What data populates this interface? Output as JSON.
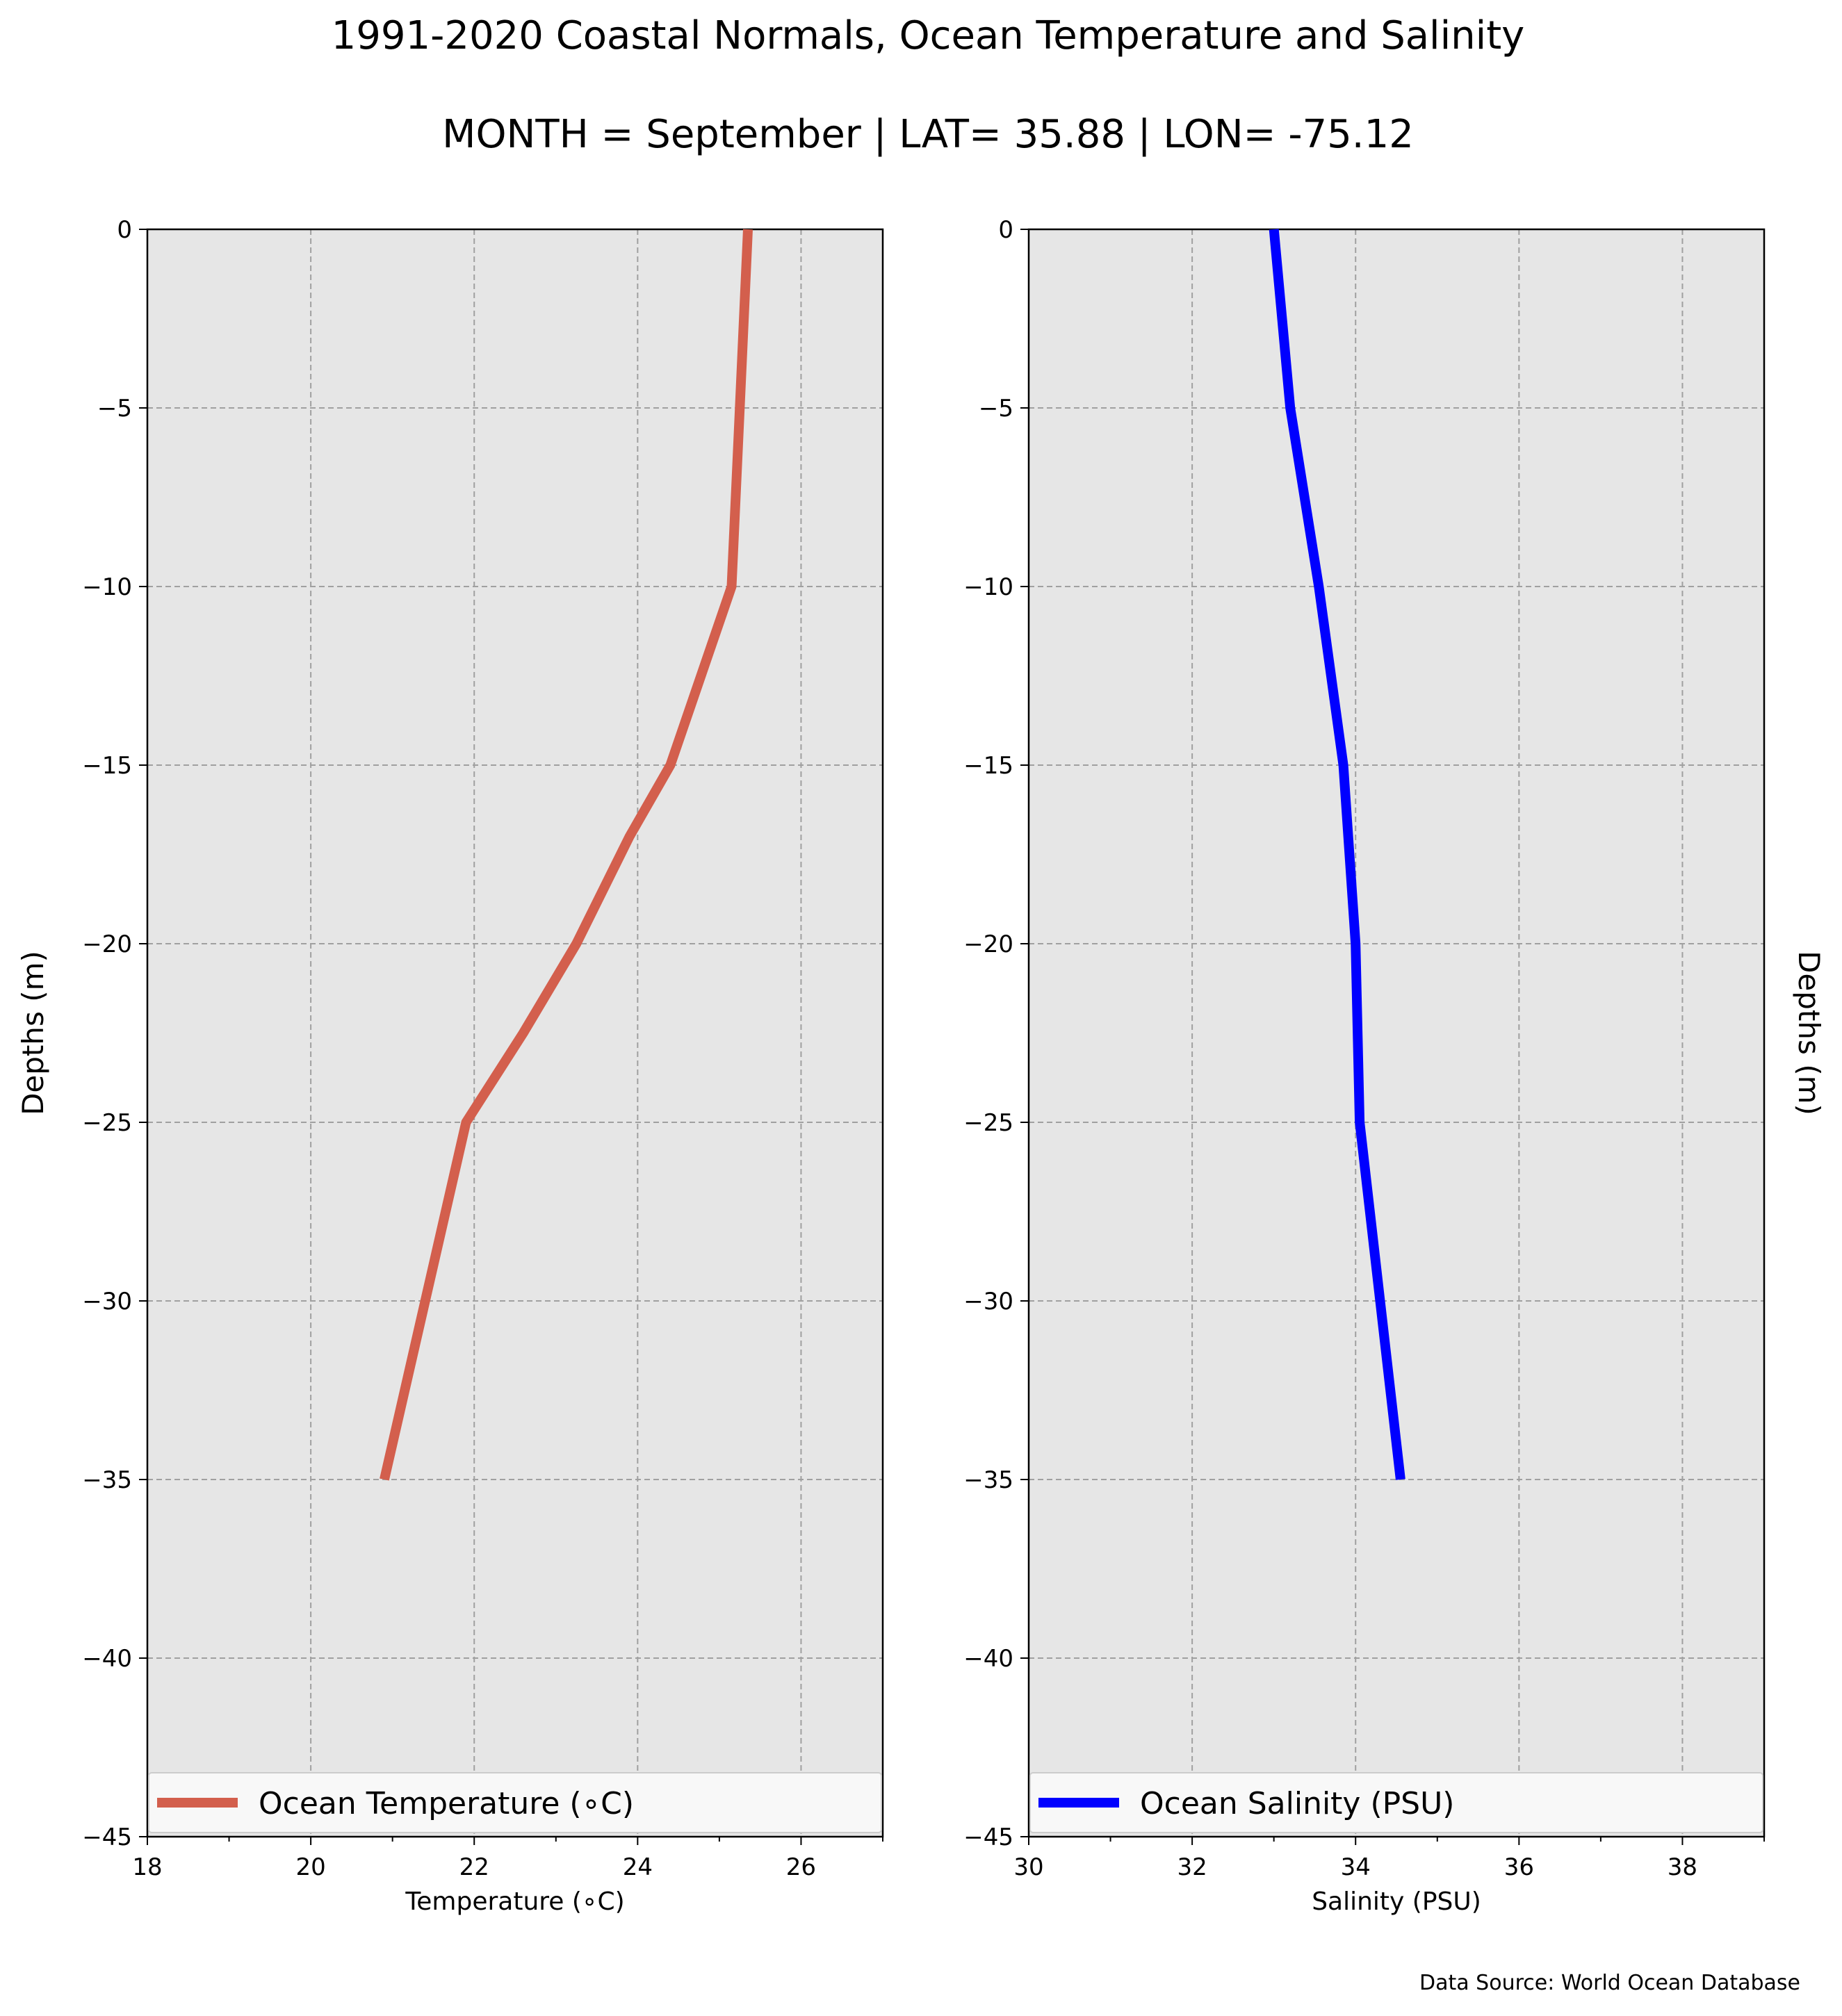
{
  "title": "1991-2020 Coastal Normals, Ocean Temperature and Salinity",
  "subtitle": "MONTH = September | LAT= 35.88 | LON= -75.12",
  "source_note": "Data Source: World Ocean Database",
  "colors": {
    "temperature_line": "#d35f4d",
    "salinity_line": "#0000ff",
    "plot_background": "#e6e6e6",
    "grid": "#a0a0a0"
  },
  "chart_data": [
    {
      "type": "line",
      "xlabel": "Temperature ($^\\circ$C)",
      "xlabel_display": "Temperature (∘C)",
      "ylabel": "Depths (m)",
      "xlim": [
        18,
        27
      ],
      "ylim": [
        -45,
        0
      ],
      "xticks": [
        "18",
        "20",
        "22",
        "24",
        "26"
      ],
      "yticks": [
        "0",
        "−5",
        "−10",
        "−15",
        "−20",
        "−25",
        "−30",
        "−35",
        "−40",
        "−45"
      ],
      "grid": true,
      "legend_position": "bottom",
      "series": [
        {
          "name": "Ocean Temperature (∘C)",
          "x": [
            25.35,
            25.25,
            25.15,
            24.4,
            23.9,
            23.25,
            22.6,
            21.9,
            21.4,
            20.9
          ],
          "y": [
            0,
            -5,
            -10,
            -15,
            -17,
            -20,
            -22.5,
            -25,
            -30,
            -35
          ]
        }
      ]
    },
    {
      "type": "line",
      "xlabel": "Salinity (PSU)",
      "ylabel": "Depths (m)",
      "xlim": [
        30,
        39
      ],
      "ylim": [
        -45,
        0
      ],
      "xticks": [
        "30",
        "32",
        "34",
        "36",
        "38"
      ],
      "yticks": [
        "0",
        "−5",
        "−10",
        "−15",
        "−20",
        "−25",
        "−30",
        "−35",
        "−40",
        "−45"
      ],
      "grid": true,
      "legend_position": "bottom",
      "series": [
        {
          "name": "Ocean Salinity (PSU)",
          "x": [
            33.0,
            33.2,
            33.55,
            33.85,
            34.0,
            34.05,
            34.3,
            34.55
          ],
          "y": [
            0,
            -5,
            -10,
            -15,
            -20,
            -25,
            -30,
            -35
          ]
        }
      ]
    }
  ]
}
